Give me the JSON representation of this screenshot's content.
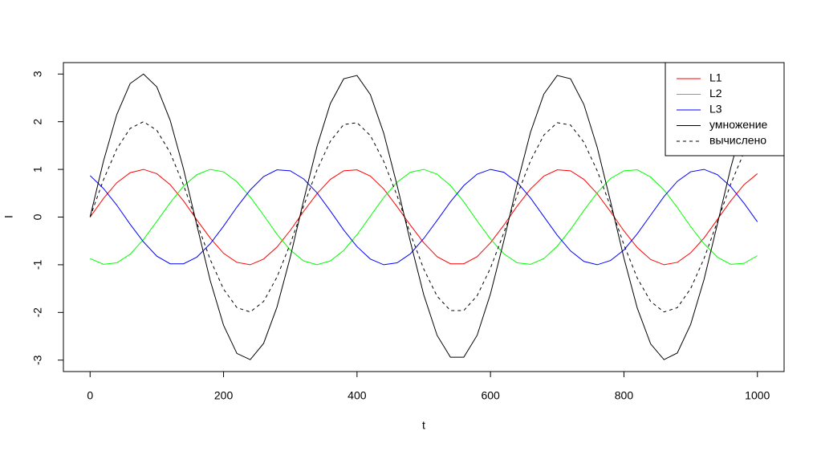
{
  "chart_data": {
    "type": "line",
    "x_label": "t",
    "y_label": "I",
    "x": [
      0,
      20,
      40,
      60,
      80,
      100,
      120,
      140,
      160,
      180,
      200,
      220,
      240,
      260,
      280,
      300,
      320,
      340,
      360,
      380,
      400,
      420,
      440,
      460,
      480,
      500,
      520,
      540,
      560,
      580,
      600,
      620,
      640,
      660,
      680,
      700,
      720,
      740,
      760,
      780,
      800,
      820,
      840,
      860,
      880,
      900,
      920,
      940,
      960,
      980,
      1000
    ],
    "series": [
      {
        "name": "L1",
        "color": "#ff0000",
        "linestyle": "solid",
        "values": [
          0,
          0.39,
          0.72,
          0.93,
          1.0,
          0.91,
          0.68,
          0.34,
          -0.06,
          -0.44,
          -0.76,
          -0.95,
          -1.0,
          -0.88,
          -0.63,
          -0.28,
          0.12,
          0.49,
          0.79,
          0.97,
          0.99,
          0.86,
          0.59,
          0.22,
          -0.17,
          -0.54,
          -0.83,
          -0.98,
          -0.98,
          -0.83,
          -0.54,
          -0.17,
          0.23,
          0.59,
          0.86,
          0.99,
          0.97,
          0.79,
          0.49,
          0.11,
          -0.29,
          -0.64,
          -0.89,
          -1.0,
          -0.95,
          -0.75,
          -0.44,
          -0.05,
          0.34,
          0.68,
          0.91
        ]
      },
      {
        "name": "L2",
        "color": "#00ff00",
        "linestyle": "solid",
        "values": [
          -0.87,
          -0.99,
          -0.96,
          -0.78,
          -0.47,
          -0.09,
          0.3,
          0.65,
          0.89,
          1.0,
          0.95,
          0.74,
          0.42,
          0.04,
          -0.36,
          -0.69,
          -0.92,
          -1.0,
          -0.92,
          -0.7,
          -0.37,
          0.02,
          0.41,
          0.73,
          0.94,
          1.0,
          0.9,
          0.66,
          0.32,
          -0.08,
          -0.46,
          -0.77,
          -0.96,
          -0.99,
          -0.87,
          -0.61,
          -0.26,
          0.14,
          0.51,
          0.81,
          0.97,
          0.99,
          0.84,
          0.57,
          0.2,
          -0.2,
          -0.56,
          -0.84,
          -0.99,
          -0.97,
          -0.81
        ]
      },
      {
        "name": "L3",
        "color": "#0000ff",
        "linestyle": "solid",
        "values": [
          0.87,
          0.6,
          0.25,
          -0.15,
          -0.52,
          -0.82,
          -0.98,
          -0.98,
          -0.84,
          -0.56,
          -0.19,
          0.21,
          0.57,
          0.85,
          0.99,
          0.97,
          0.8,
          0.51,
          0.13,
          -0.27,
          -0.62,
          -0.88,
          -1.0,
          -0.96,
          -0.77,
          -0.45,
          -0.07,
          0.32,
          0.66,
          0.9,
          1.0,
          0.94,
          0.73,
          0.4,
          0.01,
          -0.38,
          -0.71,
          -0.93,
          -1.0,
          -0.91,
          -0.69,
          -0.35,
          0.04,
          0.43,
          0.75,
          0.95,
          1.0,
          0.89,
          0.64,
          0.29,
          -0.1
        ]
      },
      {
        "name": "умножение",
        "color": "#000000",
        "linestyle": "solid",
        "values": [
          0,
          1.17,
          2.15,
          2.8,
          3.0,
          2.73,
          2.03,
          1.01,
          -0.17,
          -1.33,
          -2.27,
          -2.86,
          -2.99,
          -2.65,
          -1.89,
          -0.84,
          0.35,
          1.48,
          2.38,
          2.9,
          2.97,
          2.57,
          1.76,
          0.67,
          -0.52,
          -1.63,
          -2.48,
          -2.94,
          -2.94,
          -2.48,
          -1.61,
          -0.5,
          0.69,
          1.78,
          2.58,
          2.97,
          2.9,
          2.36,
          1.46,
          0.32,
          -0.86,
          -1.91,
          -2.66,
          -2.99,
          -2.85,
          -2.25,
          -1.31,
          -0.15,
          1.03,
          2.05,
          2.74
        ]
      },
      {
        "name": "вычислено",
        "color": "#000000",
        "linestyle": "dashed",
        "values": [
          0,
          0.78,
          1.43,
          1.86,
          2.0,
          1.82,
          1.35,
          0.67,
          -0.12,
          -0.89,
          -1.51,
          -1.9,
          -1.99,
          -1.77,
          -1.26,
          -0.56,
          0.23,
          0.99,
          1.59,
          1.94,
          1.98,
          1.71,
          1.17,
          0.45,
          -0.35,
          -1.09,
          -1.66,
          -1.96,
          -1.96,
          -1.65,
          -1.07,
          -0.33,
          0.46,
          1.18,
          1.72,
          1.98,
          1.93,
          1.57,
          0.97,
          0.22,
          -0.58,
          -1.28,
          -1.77,
          -1.99,
          -1.9,
          -1.5,
          -0.87,
          -0.1,
          0.69,
          1.36,
          1.83
        ]
      }
    ],
    "xlim": [
      -40,
      1040
    ],
    "xticks": [
      0,
      200,
      400,
      600,
      800,
      1000
    ],
    "ylim": [
      -3.24,
      3.24
    ],
    "yticks": [
      -3,
      -2,
      -1,
      0,
      1,
      2,
      3
    ],
    "legend": "topright",
    "grid": false
  }
}
